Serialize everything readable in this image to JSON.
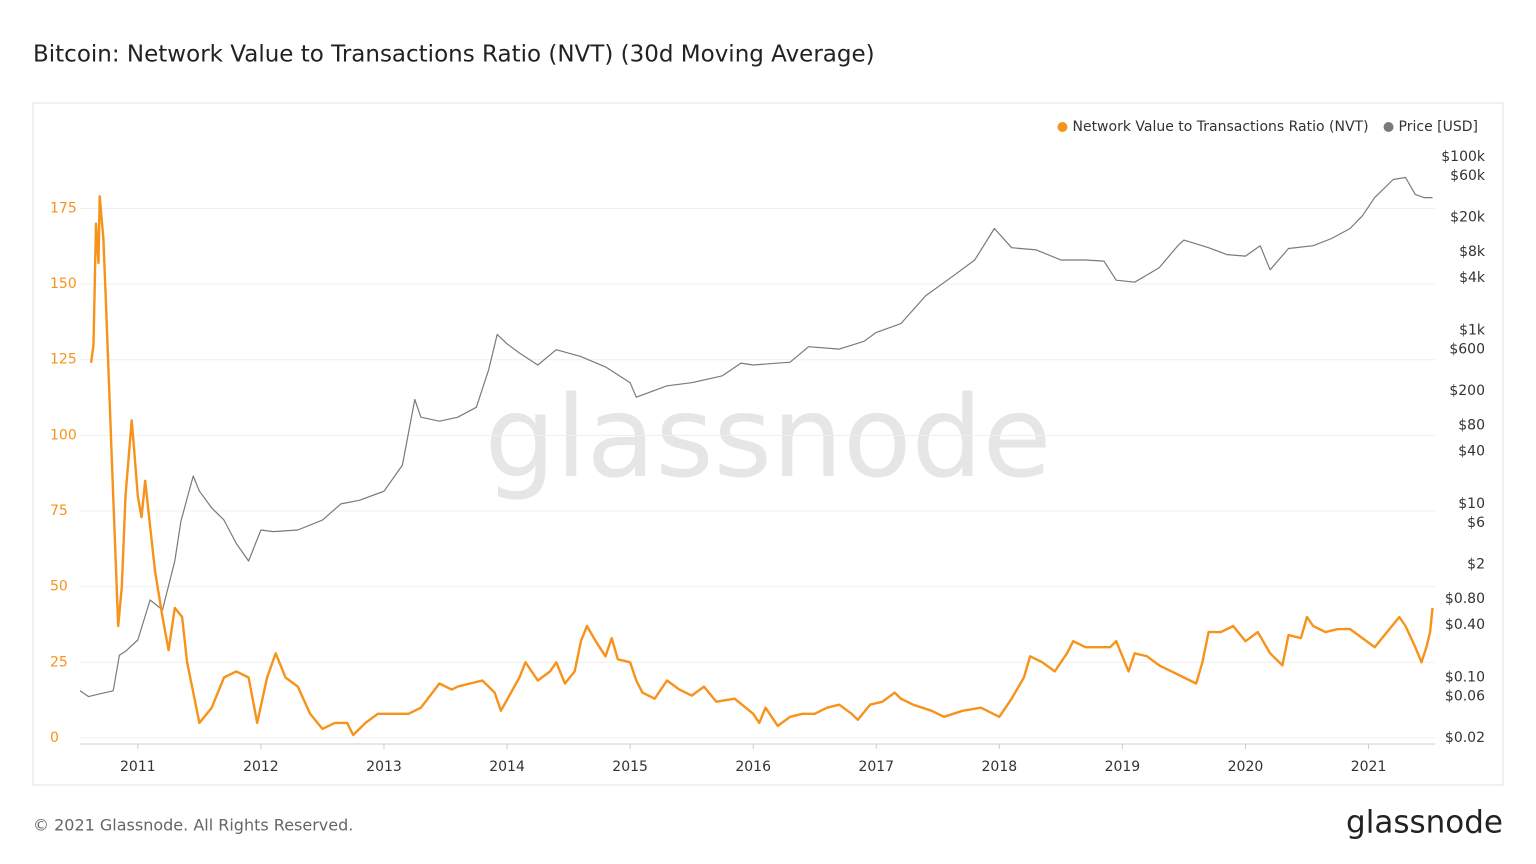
{
  "chart_data": {
    "type": "line",
    "title": "Bitcoin: Network Value to Transactions Ratio (NVT) (30d Moving Average)",
    "watermark": "glassnode",
    "footer": "© 2021 Glassnode. All Rights Reserved.",
    "logo": "glassnode",
    "legend": "top-right",
    "grid": true,
    "y2log": true,
    "xlim": [
      2010.53,
      2021.54
    ],
    "xticks": [
      2011,
      2012,
      2013,
      2014,
      2015,
      2016,
      2017,
      2018,
      2019,
      2020,
      2021
    ],
    "ylim": [
      0,
      192
    ],
    "yticks": [
      0,
      25,
      50,
      75,
      100,
      125,
      150,
      175
    ],
    "y2lim": [
      0.02,
      100000
    ],
    "y2ticks": [
      {
        "value": 100000,
        "label": "$100k"
      },
      {
        "value": 60000,
        "label": "$60k"
      },
      {
        "value": 20000,
        "label": "$20k"
      },
      {
        "value": 8000,
        "label": "$8k"
      },
      {
        "value": 4000,
        "label": "$4k"
      },
      {
        "value": 1000,
        "label": "$1k"
      },
      {
        "value": 600,
        "label": "$600"
      },
      {
        "value": 200,
        "label": "$200"
      },
      {
        "value": 80,
        "label": "$80"
      },
      {
        "value": 40,
        "label": "$40"
      },
      {
        "value": 10,
        "label": "$10"
      },
      {
        "value": 6,
        "label": "$6"
      },
      {
        "value": 2,
        "label": "$2"
      },
      {
        "value": 0.8,
        "label": "$0.80"
      },
      {
        "value": 0.4,
        "label": "$0.40"
      },
      {
        "value": 0.1,
        "label": "$0.10"
      },
      {
        "value": 0.06,
        "label": "$0.06"
      },
      {
        "value": 0.02,
        "label": "$0.02"
      }
    ],
    "series": [
      {
        "name": "Network Value to Transactions Ratio (NVT)",
        "color": "#f7931a",
        "axis": "y",
        "x": [
          2010.62,
          2010.64,
          2010.66,
          2010.68,
          2010.69,
          2010.72,
          2010.74,
          2010.8,
          2010.84,
          2010.87,
          2010.9,
          2010.95,
          2010.97,
          2011.0,
          2011.03,
          2011.06,
          2011.1,
          2011.14,
          2011.2,
          2011.25,
          2011.3,
          2011.36,
          2011.4,
          2011.5,
          2011.6,
          2011.7,
          2011.8,
          2011.9,
          2011.97,
          2012.05,
          2012.12,
          2012.2,
          2012.3,
          2012.4,
          2012.5,
          2012.6,
          2012.7,
          2012.75,
          2012.85,
          2012.95,
          2013.0,
          2013.2,
          2013.3,
          2013.45,
          2013.55,
          2013.6,
          2013.7,
          2013.8,
          2013.9,
          2013.95,
          2014.1,
          2014.15,
          2014.25,
          2014.35,
          2014.4,
          2014.47,
          2014.55,
          2014.6,
          2014.65,
          2014.72,
          2014.8,
          2014.85,
          2014.9,
          2015.0,
          2015.05,
          2015.1,
          2015.2,
          2015.3,
          2015.4,
          2015.5,
          2015.6,
          2015.7,
          2015.85,
          2016.0,
          2016.05,
          2016.1,
          2016.2,
          2016.3,
          2016.4,
          2016.5,
          2016.6,
          2016.7,
          2016.8,
          2016.85,
          2016.95,
          2017.05,
          2017.15,
          2017.2,
          2017.3,
          2017.45,
          2017.55,
          2017.7,
          2017.85,
          2018.0,
          2018.1,
          2018.2,
          2018.25,
          2018.35,
          2018.45,
          2018.55,
          2018.6,
          2018.7,
          2018.8,
          2018.9,
          2018.95,
          2019.05,
          2019.1,
          2019.2,
          2019.3,
          2019.4,
          2019.5,
          2019.6,
          2019.65,
          2019.7,
          2019.8,
          2019.9,
          2020.0,
          2020.1,
          2020.2,
          2020.3,
          2020.35,
          2020.45,
          2020.5,
          2020.55,
          2020.65,
          2020.75,
          2020.85,
          2020.95,
          2021.05,
          2021.15,
          2021.25,
          2021.3,
          2021.38,
          2021.43,
          2021.47,
          2021.5,
          2021.52
        ],
        "values": [
          124,
          130,
          170,
          157,
          179,
          165,
          145,
          80,
          37,
          50,
          80,
          105,
          95,
          80,
          73,
          85,
          70,
          55,
          40,
          29,
          43,
          40,
          25,
          5,
          10,
          20,
          22,
          20,
          5,
          20,
          28,
          20,
          17,
          8,
          3,
          5,
          5,
          1,
          5,
          8,
          8,
          8,
          10,
          18,
          16,
          17,
          18,
          19,
          15,
          9,
          20,
          25,
          19,
          22,
          25,
          18,
          22,
          32,
          37,
          32,
          27,
          33,
          26,
          25,
          19,
          15,
          13,
          19,
          16,
          14,
          17,
          12,
          13,
          8,
          5,
          10,
          4,
          7,
          8,
          8,
          10,
          11,
          8,
          6,
          11,
          12,
          15,
          13,
          11,
          9,
          7,
          9,
          10,
          7,
          13,
          20,
          27,
          25,
          22,
          28,
          32,
          30,
          30,
          30,
          32,
          22,
          28,
          27,
          24,
          22,
          20,
          18,
          25,
          35,
          35,
          37,
          32,
          35,
          28,
          24,
          34,
          33,
          40,
          37,
          35,
          36,
          36,
          33,
          30,
          35,
          40,
          37,
          30,
          25,
          30,
          35,
          43
        ]
      },
      {
        "name": "Price [USD]",
        "color": "#7a7a7a",
        "axis": "y2",
        "x": [
          2010.53,
          2010.6,
          2010.7,
          2010.8,
          2010.85,
          2010.9,
          2011.0,
          2011.1,
          2011.2,
          2011.3,
          2011.35,
          2011.45,
          2011.5,
          2011.6,
          2011.7,
          2011.8,
          2011.9,
          2012.0,
          2012.1,
          2012.3,
          2012.5,
          2012.65,
          2012.8,
          2013.0,
          2013.15,
          2013.25,
          2013.3,
          2013.45,
          2013.6,
          2013.75,
          2013.85,
          2013.92,
          2014.0,
          2014.1,
          2014.25,
          2014.4,
          2014.6,
          2014.8,
          2015.0,
          2015.05,
          2015.3,
          2015.5,
          2015.75,
          2015.9,
          2016.0,
          2016.3,
          2016.45,
          2016.7,
          2016.9,
          2017.0,
          2017.2,
          2017.4,
          2017.6,
          2017.8,
          2017.96,
          2018.1,
          2018.3,
          2018.5,
          2018.7,
          2018.85,
          2018.95,
          2019.1,
          2019.3,
          2019.45,
          2019.5,
          2019.7,
          2019.85,
          2020.0,
          2020.12,
          2020.2,
          2020.35,
          2020.55,
          2020.7,
          2020.85,
          2020.95,
          2021.05,
          2021.2,
          2021.3,
          2021.38,
          2021.45,
          2021.52
        ],
        "values": [
          0.07,
          0.06,
          0.065,
          0.07,
          0.18,
          0.2,
          0.27,
          0.78,
          0.6,
          2.2,
          6.3,
          21,
          14,
          9,
          6.5,
          3.5,
          2.2,
          5,
          4.8,
          5,
          6.5,
          10,
          11,
          14,
          28,
          160,
          100,
          90,
          100,
          130,
          350,
          900,
          700,
          550,
          400,
          600,
          500,
          380,
          250,
          170,
          230,
          250,
          300,
          420,
          400,
          430,
          650,
          610,
          750,
          950,
          1200,
          2500,
          4000,
          6500,
          15000,
          9000,
          8500,
          6500,
          6500,
          6300,
          3800,
          3600,
          5300,
          9500,
          11000,
          9000,
          7500,
          7200,
          9500,
          5000,
          8800,
          9500,
          11500,
          15000,
          21000,
          34000,
          55000,
          58000,
          37000,
          34000,
          34000
        ]
      }
    ]
  }
}
